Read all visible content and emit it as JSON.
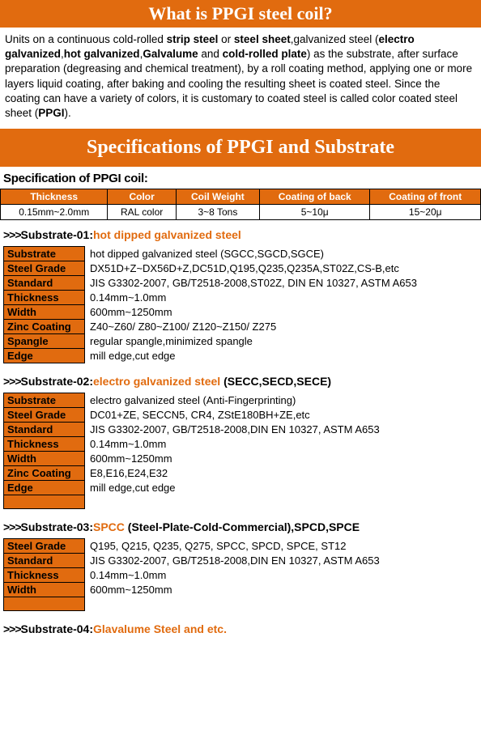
{
  "banner1": "What is PPGI steel coil?",
  "intro": {
    "t1": "Units on a continuous cold-rolled ",
    "b1": "strip steel",
    "t2": " or ",
    "b2": "steel sheet",
    "t3": ",galvanized steel (",
    "b3": "electro galvanized",
    "t4": ",",
    "b4": "hot galvanized",
    "t5": ",",
    "b5": "Galvalume",
    "t6": " and ",
    "b6": "cold-rolled plate",
    "t7": ") as the substrate, after surface preparation (degreasing and chemical treatment), by a roll coating method, applying one or more layers liquid coating, after baking and cooling the resulting sheet is coated steel. Since the coating can have a variety of colors, it is customary to coated steel is called color coated steel sheet (",
    "b7": "PPGI",
    "t8": ")."
  },
  "banner2": "Specifications of PPGI and Substrate",
  "specTitle": "Specification of PPGI coil:",
  "specTable": {
    "headers": [
      "Thickness",
      "Color",
      "Coil Weight",
      "Coating of back",
      "Coating of front"
    ],
    "row": [
      "0.15mm~2.0mm",
      "RAL color",
      "3~8 Tons",
      "5~10μ",
      "15~20μ"
    ]
  },
  "sub01": {
    "prefix": ">>>",
    "label": "Substrate-01:",
    "hl": "hot dipped galvanized steel",
    "rest": ""
  },
  "kv01": [
    [
      "Substrate",
      "hot dipped galvanized steel (SGCC,SGCD,SGCE)"
    ],
    [
      "Steel Grade",
      "DX51D+Z~DX56D+Z,DC51D,Q195,Q235,Q235A,ST02Z,CS-B,etc"
    ],
    [
      "Standard",
      "JIS G3302-2007, GB/T2518-2008,ST02Z, DIN EN 10327, ASTM A653"
    ],
    [
      "Thickness",
      "0.14mm~1.0mm"
    ],
    [
      "Width",
      "600mm~1250mm"
    ],
    [
      "Zinc Coating",
      "Z40~Z60/ Z80~Z100/ Z120~Z150/ Z275"
    ],
    [
      "Spangle",
      "regular spangle,minimized spangle"
    ],
    [
      "Edge",
      "mill edge,cut edge"
    ]
  ],
  "sub02": {
    "prefix": ">>>",
    "label": "Substrate-02:",
    "hl": "electro galvanized steel",
    "rest": " (SECC,SECD,SECE)"
  },
  "kv02": [
    [
      "Substrate",
      "electro galvanized steel (Anti-Fingerprinting)"
    ],
    [
      "Steel Grade",
      "DC01+ZE, SECCN5, CR4, ZStE180BH+ZE,etc"
    ],
    [
      "Standard",
      "JIS G3302-2007, GB/T2518-2008,DIN EN 10327, ASTM A653"
    ],
    [
      "Thickness",
      "0.14mm~1.0mm"
    ],
    [
      "Width",
      "600mm~1250mm"
    ],
    [
      "Zinc Coating",
      "E8,E16,E24,E32"
    ],
    [
      "Edge",
      "mill edge,cut edge"
    ]
  ],
  "sub03": {
    "prefix": ">>>",
    "label": "Substrate-03:",
    "hl": "SPCC",
    "rest": " (Steel-Plate-Cold-Commercial),SPCD,SPCE"
  },
  "kv03": [
    [
      "Steel Grade",
      "Q195, Q215, Q235, Q275, SPCC, SPCD, SPCE, ST12"
    ],
    [
      "Standard",
      "JIS G3302-2007, GB/T2518-2008,DIN EN 10327, ASTM A653"
    ],
    [
      "Thickness",
      "0.14mm~1.0mm"
    ],
    [
      "Width",
      "600mm~1250mm"
    ]
  ],
  "sub04": {
    "prefix": ">>>",
    "label": "Substrate-04:",
    "hl": "Glavalume Steel and etc.",
    "rest": ""
  }
}
